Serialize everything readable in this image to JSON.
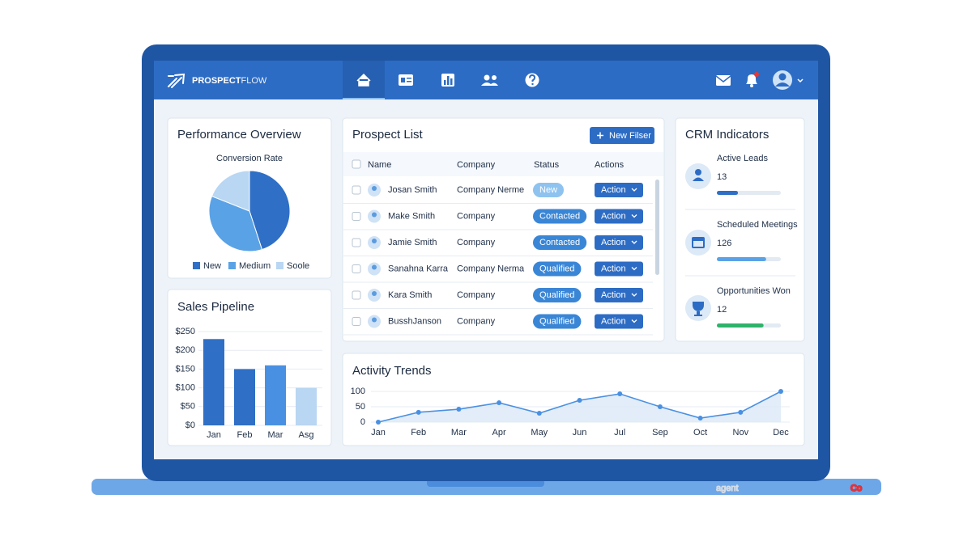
{
  "logo": {
    "strong": "PROSPECT",
    "light": "FLOW"
  },
  "panels": {
    "performance": "Performance Overview",
    "pipeline": "Sales Pipeline",
    "activity": "Activity Trends"
  },
  "chart_data": [
    {
      "type": "pie",
      "title": "Conversion Rate",
      "categories": [
        "New",
        "Medium",
        "Soole"
      ],
      "values": [
        45,
        36,
        19
      ],
      "colors": [
        "#2f6fc6",
        "#5aa2e6",
        "#b9d6f2"
      ]
    },
    {
      "type": "bar",
      "categories": [
        "Jan",
        "Feb",
        "Mar",
        "Asg"
      ],
      "values": [
        230,
        150,
        160,
        100
      ],
      "colors": [
        "#2f6fc6",
        "#2f6fc6",
        "#4a90e2",
        "#b9d6f2"
      ],
      "ylim": [
        0,
        250
      ],
      "yticks": [
        {
          "value": 0,
          "label": "$0"
        },
        {
          "value": 50,
          "label": "$50"
        },
        {
          "value": 100,
          "label": "$100"
        },
        {
          "value": 150,
          "label": "$150"
        },
        {
          "value": 200,
          "label": "$200"
        },
        {
          "value": 250,
          "label": "$250"
        }
      ],
      "grid": true
    },
    {
      "type": "line",
      "categories": [
        "Jan",
        "Feb",
        "Mar",
        "Apr",
        "May",
        "Jun",
        "Jul",
        "Sep",
        "Oct",
        "Nov",
        "Dec"
      ],
      "values": [
        0,
        32,
        42,
        63,
        29,
        71,
        92,
        50,
        13,
        32,
        100
      ],
      "color": "#4a90e2",
      "area": true,
      "ylim": [
        0,
        100
      ],
      "yticks": [
        0,
        50,
        100
      ],
      "grid": true
    }
  ],
  "prospects": {
    "title": "Prospect List",
    "button": "New Filser",
    "columns": [
      "Name",
      "Company",
      "Status",
      "Actions"
    ],
    "rows": [
      {
        "name": "Josan Smith",
        "company": "Company Nerme",
        "status": "New",
        "status_color": "#8ec3f0",
        "action": "Action"
      },
      {
        "name": "Make Smith",
        "company": "Company",
        "status": "Contacted",
        "status_color": "#3a86d6",
        "action": "Action"
      },
      {
        "name": "Jamie Smith",
        "company": "Company",
        "status": "Contacted",
        "status_color": "#3a86d6",
        "action": "Action"
      },
      {
        "name": "Sanahna Karra",
        "company": "Company Nerma",
        "status": "Qualified",
        "status_color": "#3a86d6",
        "action": "Action"
      },
      {
        "name": "Kara Smith",
        "company": "Company",
        "status": "Qualified",
        "status_color": "#3a86d6",
        "action": "Action"
      },
      {
        "name": "BusshJanson",
        "company": "Company",
        "status": "Qualified",
        "status_color": "#3a86d6",
        "action": "Action"
      }
    ]
  },
  "crm": {
    "title": "CRM Indicators",
    "items": [
      {
        "label": "Active Leads",
        "value": 13,
        "progress": 33,
        "color": "#2f6fc6"
      },
      {
        "label": "Scheduled Meetings",
        "value": 126,
        "progress": 77,
        "color": "#5aa2e6"
      },
      {
        "label": "Opportunities Won",
        "value": 12,
        "progress": 73,
        "color": "#2fb36b"
      }
    ]
  },
  "watermark": {
    "a": "agent",
    "b": "Co"
  }
}
